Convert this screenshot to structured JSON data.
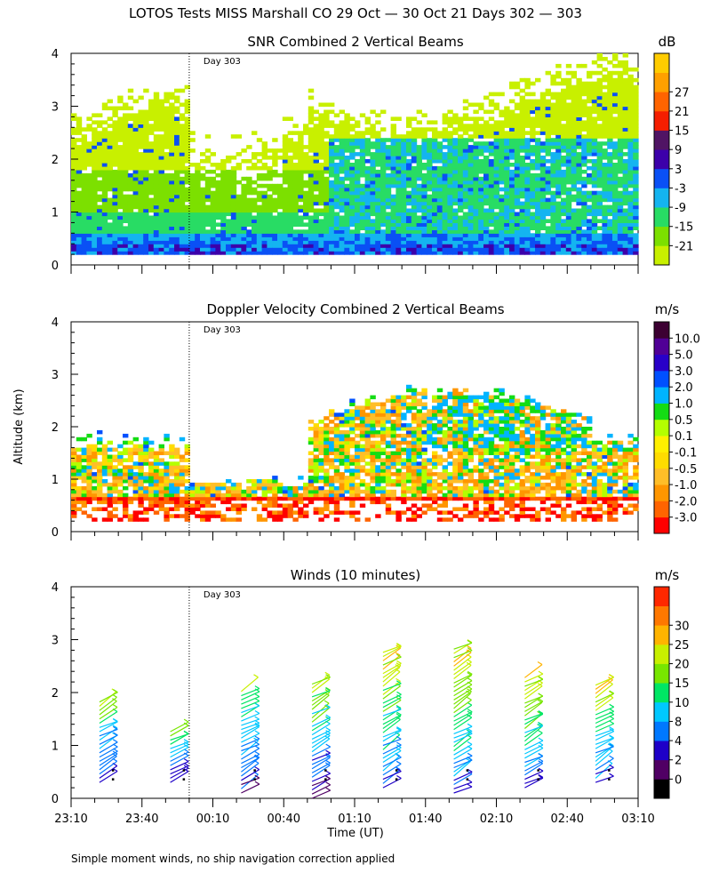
{
  "figure": {
    "title": "LOTOS Tests MISS Marshall CO  29 Oct — 30 Oct 21 Days 302 — 303",
    "ylabel": "Altitude (km)",
    "xlabel": "Time (UT)",
    "footnote": "Simple moment winds, no ship navigation correction applied",
    "day_marker": "Day 303"
  },
  "chart_data": [
    {
      "type": "heatmap",
      "title": "SNR Combined 2 Vertical Beams",
      "xlabel": "Time (UT)",
      "ylabel": "Altitude (km)",
      "x_ticks": [
        "23:10",
        "23:40",
        "00:10",
        "00:40",
        "01:10",
        "01:40",
        "02:10",
        "02:40",
        "03:10"
      ],
      "y_ticks": [
        "0",
        "1",
        "2",
        "3",
        "4"
      ],
      "ylim": [
        0,
        4
      ],
      "xlim_minutes": [
        0,
        240
      ],
      "day_boundary_minutes": 50,
      "colorbar": {
        "unit": "dB",
        "colors": [
          "#c8f000",
          "#7ce000",
          "#28dc64",
          "#14b4f0",
          "#0a50f5",
          "#3c00aa",
          "#501464",
          "#f51e00",
          "#ff6400",
          "#ffa000",
          "#ffcc00"
        ],
        "labels": [
          "-21",
          "-15",
          "-9",
          "-3",
          "3",
          "9",
          "15",
          "21",
          "27"
        ],
        "label_bands": [
          0,
          1,
          2,
          3,
          4,
          5,
          6,
          7,
          8
        ]
      }
    },
    {
      "type": "heatmap",
      "title": "Doppler Velocity Combined 2 Vertical Beams",
      "xlabel": "Time (UT)",
      "ylabel": "Altitude (km)",
      "x_ticks": [
        "23:10",
        "23:40",
        "00:10",
        "00:40",
        "01:10",
        "01:40",
        "02:10",
        "02:40",
        "03:10"
      ],
      "y_ticks": [
        "0",
        "1",
        "2",
        "3",
        "4"
      ],
      "ylim": [
        0,
        4
      ],
      "xlim_minutes": [
        0,
        240
      ],
      "day_boundary_minutes": 50,
      "colorbar": {
        "unit": "m/s",
        "colors": [
          "#ff0000",
          "#ff6400",
          "#ff9600",
          "#ffbe28",
          "#ffdc00",
          "#fff000",
          "#b4ff00",
          "#14dc14",
          "#00b4ff",
          "#0050ff",
          "#2800c8",
          "#500096",
          "#3c0032"
        ],
        "labels": [
          "-3.0",
          "-2.0",
          "-1.0",
          "-0.5",
          "-0.1",
          "0.1",
          "0.5",
          "1.0",
          "2.0",
          "3.0",
          "5.0",
          "10.0"
        ],
        "label_bands": [
          0,
          1,
          2,
          3,
          4,
          5,
          6,
          7,
          8,
          9,
          10,
          11
        ]
      }
    },
    {
      "type": "scatter",
      "title": "Winds (10 minutes)",
      "xlabel": "Time (UT)",
      "ylabel": "Altitude (km)",
      "x_ticks": [
        "23:10",
        "23:40",
        "00:10",
        "00:40",
        "01:10",
        "01:40",
        "02:10",
        "02:40",
        "03:10"
      ],
      "y_ticks": [
        "0",
        "1",
        "2",
        "3",
        "4"
      ],
      "ylim": [
        0,
        4
      ],
      "xlim_minutes": [
        0,
        240
      ],
      "day_boundary_minutes": 50,
      "colorbar": {
        "unit": "m/s",
        "colors": [
          "#000000",
          "#500064",
          "#1e00c8",
          "#0078ff",
          "#00c8ff",
          "#00e664",
          "#78e600",
          "#c8f000",
          "#ffb400",
          "#ff7800",
          "#ff2800"
        ],
        "labels": [
          "0",
          "2",
          "4",
          "8",
          "10",
          "15",
          "20",
          "25",
          "30"
        ],
        "label_bands": [
          0,
          1,
          2,
          3,
          4,
          5,
          6,
          7,
          8
        ]
      },
      "profiles": [
        {
          "time_min": 15,
          "alt_min": 0.3,
          "alt_max": 1.9
        },
        {
          "time_min": 45,
          "alt_min": 0.3,
          "alt_max": 1.3
        },
        {
          "time_min": 75,
          "alt_min": 0.1,
          "alt_max": 2.1
        },
        {
          "time_min": 105,
          "alt_min": 0.0,
          "alt_max": 2.2
        },
        {
          "time_min": 135,
          "alt_min": 0.2,
          "alt_max": 2.8
        },
        {
          "time_min": 165,
          "alt_min": 0.1,
          "alt_max": 2.9
        },
        {
          "time_min": 195,
          "alt_min": 0.2,
          "alt_max": 2.3
        },
        {
          "time_min": 225,
          "alt_min": 0.3,
          "alt_max": 2.2
        }
      ]
    }
  ]
}
